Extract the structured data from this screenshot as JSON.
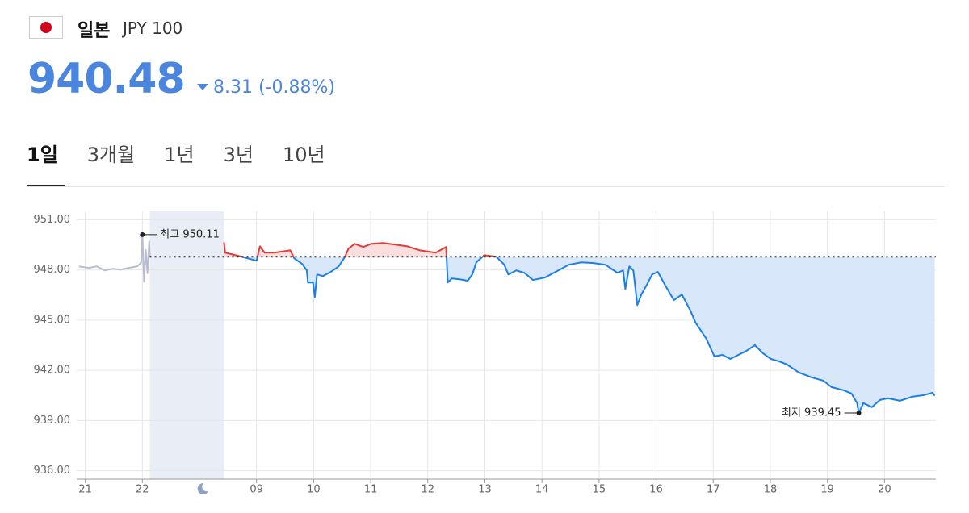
{
  "header": {
    "country": "일본",
    "ticker": "JPY 100",
    "price": "940.48",
    "change": "8.31 (-0.88%)"
  },
  "tabs": {
    "items": [
      "1일",
      "3개월",
      "1년",
      "3년",
      "10년"
    ],
    "active": 0
  },
  "chart_data": {
    "type": "line",
    "xlim": [
      -0.15,
      14.9
    ],
    "ylim": [
      935.5,
      951.5
    ],
    "yticks": [
      {
        "value": 936,
        "label": "936.00"
      },
      {
        "value": 939,
        "label": "939.00"
      },
      {
        "value": 942,
        "label": "942.00"
      },
      {
        "value": 945,
        "label": "945.00"
      },
      {
        "value": 948,
        "label": "948.00"
      },
      {
        "value": 951,
        "label": "951.00"
      }
    ],
    "xticks": [
      {
        "value": 0,
        "label": "21"
      },
      {
        "value": 1,
        "label": "22"
      },
      {
        "value": 3,
        "label": "09"
      },
      {
        "value": 4,
        "label": "10"
      },
      {
        "value": 5,
        "label": "11"
      },
      {
        "value": 6,
        "label": "12"
      },
      {
        "value": 7,
        "label": "13"
      },
      {
        "value": 8,
        "label": "14"
      },
      {
        "value": 9,
        "label": "15"
      },
      {
        "value": 10,
        "label": "16"
      },
      {
        "value": 11,
        "label": "17"
      },
      {
        "value": 12,
        "label": "18"
      },
      {
        "value": 13,
        "label": "19"
      },
      {
        "value": 14,
        "label": "20"
      }
    ],
    "grid": true,
    "reference": 948.79,
    "closed_range": [
      1.13,
      2.43
    ],
    "series": [
      {
        "color": "#b9bdd2",
        "x": [
          -0.11,
          0.06,
          0.2,
          0.34,
          0.48,
          0.62,
          0.76,
          0.91,
          0.98,
          1.0,
          1.03,
          1.06,
          1.09,
          1.12,
          1.13
        ],
        "values": [
          948.21,
          948.12,
          948.21,
          947.97,
          948.07,
          948.02,
          948.12,
          948.21,
          948.45,
          950.11,
          947.3,
          949.2,
          947.8,
          949.7,
          948.8
        ]
      },
      {
        "color": "#1a7fe8",
        "color_up": "#e23b3b",
        "fill": "#d9e7fa",
        "fill_up": "#fbdede",
        "x": [
          2.43,
          2.45,
          2.74,
          3.0,
          3.06,
          3.14,
          3.31,
          3.59,
          3.66,
          3.8,
          3.88,
          3.9,
          3.99,
          4.02,
          4.06,
          4.16,
          4.3,
          4.44,
          4.55,
          4.61,
          4.72,
          4.87,
          5.01,
          5.22,
          5.43,
          5.64,
          5.86,
          6.14,
          6.32,
          6.35,
          6.42,
          6.56,
          6.7,
          6.78,
          6.85,
          6.99,
          7.2,
          7.34,
          7.41,
          7.55,
          7.69,
          7.84,
          8.05,
          8.26,
          8.47,
          8.69,
          8.9,
          9.11,
          9.32,
          9.42,
          9.46,
          9.53,
          9.6,
          9.67,
          9.74,
          9.82,
          9.93,
          10.03,
          10.17,
          10.31,
          10.45,
          10.6,
          10.69,
          10.88,
          11.02,
          11.16,
          11.3,
          11.44,
          11.58,
          11.73,
          11.87,
          12.01,
          12.15,
          12.29,
          12.5,
          12.72,
          12.93,
          13.07,
          13.28,
          13.42,
          13.52,
          13.55,
          13.63,
          13.78,
          13.92,
          14.06,
          14.27,
          14.48,
          14.69,
          14.84,
          14.88
        ],
        "values": [
          949.65,
          949.03,
          948.79,
          948.55,
          949.41,
          949.03,
          949.03,
          949.17,
          948.69,
          948.36,
          947.97,
          947.25,
          947.25,
          946.38,
          947.73,
          947.63,
          947.88,
          948.21,
          948.79,
          949.27,
          949.56,
          949.37,
          949.56,
          949.61,
          949.51,
          949.41,
          949.17,
          949.03,
          949.37,
          947.25,
          947.49,
          947.44,
          947.35,
          947.73,
          948.45,
          948.88,
          948.79,
          948.31,
          947.73,
          947.97,
          947.83,
          947.4,
          947.54,
          947.92,
          948.31,
          948.45,
          948.41,
          948.31,
          947.83,
          947.97,
          946.87,
          948.21,
          947.97,
          945.9,
          946.53,
          947.01,
          947.73,
          947.88,
          947.01,
          946.19,
          946.53,
          945.57,
          944.85,
          943.88,
          942.83,
          942.92,
          942.68,
          942.92,
          943.16,
          943.5,
          943.02,
          942.68,
          942.54,
          942.35,
          941.87,
          941.58,
          941.38,
          941.0,
          940.81,
          940.62,
          940.04,
          939.45,
          940.04,
          939.8,
          940.23,
          940.33,
          940.18,
          940.42,
          940.52,
          940.66,
          940.48
        ]
      }
    ],
    "annotations": [
      {
        "text": "최고 950.11",
        "x": 1.0,
        "y": 950.11,
        "side": "right"
      },
      {
        "text": "최저 939.45",
        "x": 13.55,
        "y": 939.45,
        "side": "left"
      }
    ]
  }
}
